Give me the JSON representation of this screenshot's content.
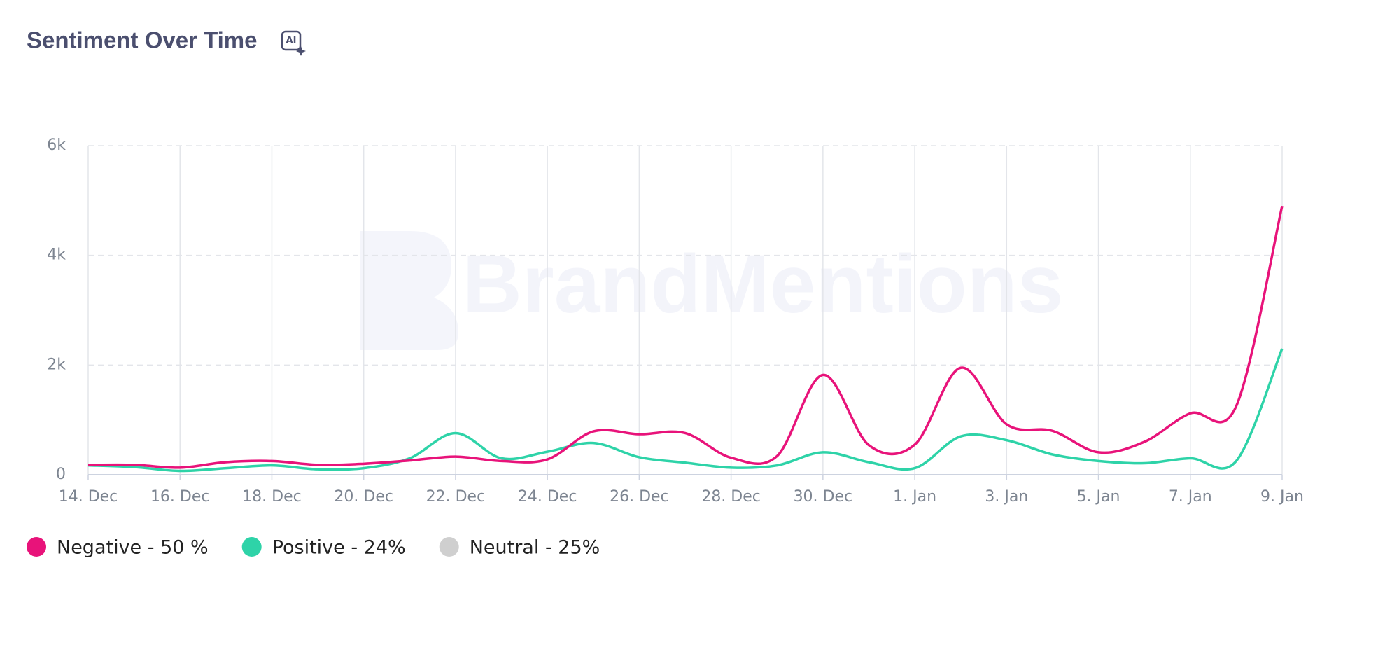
{
  "chart_data": {
    "type": "line",
    "title": "Sentiment Over Time",
    "icon_label": "AI",
    "watermark": "BrandMentions",
    "categories": [
      "14. Dec",
      null,
      "16. Dec",
      null,
      "18. Dec",
      null,
      "20. Dec",
      null,
      "22. Dec",
      null,
      "24. Dec",
      null,
      "26. Dec",
      null,
      "28. Dec",
      null,
      "30. Dec",
      null,
      "1. Jan",
      null,
      "3. Jan",
      null,
      "5. Jan",
      null,
      "7. Jan",
      null,
      "9. Jan"
    ],
    "series": [
      {
        "name": "Negative - 50 %",
        "color": "#e8137a",
        "values": [
          180,
          180,
          130,
          230,
          250,
          180,
          200,
          260,
          330,
          250,
          280,
          790,
          740,
          760,
          310,
          340,
          1820,
          540,
          550,
          1950,
          920,
          800,
          410,
          600,
          1120,
          1250,
          4900
        ]
      },
      {
        "name": "Positive - 24%",
        "color": "#2ed3a8",
        "values": [
          170,
          140,
          70,
          120,
          170,
          100,
          120,
          300,
          760,
          300,
          420,
          580,
          320,
          220,
          130,
          170,
          410,
          230,
          120,
          700,
          630,
          370,
          250,
          210,
          300,
          250,
          2300
        ]
      }
    ],
    "hidden_series": [
      {
        "name": "Neutral - 25%",
        "color": "#cfcfcf"
      }
    ],
    "ylim": [
      0,
      6000
    ],
    "yticks": [
      0,
      {
        "value": 2000,
        "label": "2k"
      },
      {
        "value": 4000,
        "label": "4k"
      },
      {
        "value": 6000,
        "label": "6k"
      }
    ],
    "grid": true
  }
}
